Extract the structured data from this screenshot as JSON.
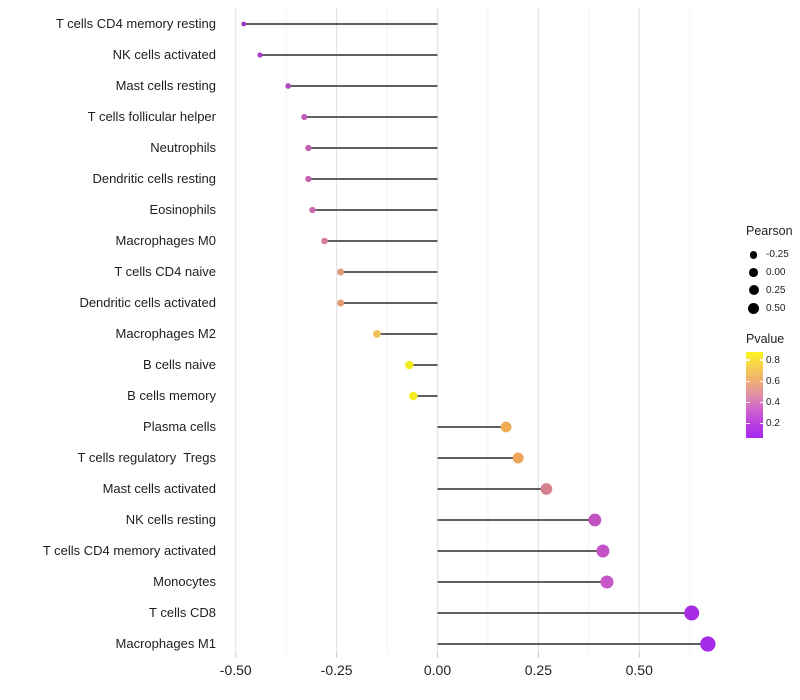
{
  "chart_data": {
    "type": "lollipop",
    "orientation": "horizontal",
    "title": "",
    "xlabel": "",
    "ylabel": "",
    "baseline": 0,
    "xlim": [
      -0.54,
      0.73
    ],
    "x_ticks": [
      -0.5,
      -0.25,
      0.0,
      0.25,
      0.5
    ],
    "x_tick_labels": [
      "-0.50",
      "-0.25",
      "0.00",
      "0.25",
      "0.50"
    ],
    "x_minor_ticks": [
      -0.375,
      -0.125,
      0.125,
      0.375,
      0.625
    ],
    "grid": "vertical major and minor gridlines, white background",
    "size_encodes": "Pearson",
    "color_encodes": "Pvalue",
    "categories": [
      "T cells CD4 memory resting",
      "NK cells activated",
      "Mast cells resting",
      "T cells follicular helper",
      "Neutrophils",
      "Dendritic cells resting",
      "Eosinophils",
      "Macrophages M0",
      "T cells CD4 naive",
      "Dendritic cells activated",
      "Macrophages M2",
      "B cells naive",
      "B cells memory",
      "Plasma cells",
      "T cells regulatory  Tregs",
      "Mast cells activated",
      "NK cells resting",
      "T cells CD4 memory activated",
      "Monocytes",
      "T cells CD8",
      "Macrophages M1"
    ],
    "series": [
      {
        "name": "Pearson correlation",
        "values": [
          -0.48,
          -0.44,
          -0.37,
          -0.33,
          -0.32,
          -0.32,
          -0.31,
          -0.28,
          -0.24,
          -0.24,
          -0.15,
          -0.07,
          -0.06,
          0.17,
          0.2,
          0.27,
          0.39,
          0.41,
          0.42,
          0.63,
          0.67
        ]
      }
    ],
    "point_colors": [
      "#9C31C6",
      "#A83CCA",
      "#B149BE",
      "#C25CB3",
      "#C45FB0",
      "#C662AE",
      "#C968AA",
      "#D67D99",
      "#E39A76",
      "#E49A73",
      "#EFC05C",
      "#F2EC25",
      "#F3EE21",
      "#EFAD55",
      "#EFA559",
      "#D9808F",
      "#C151C1",
      "#C353C6",
      "#C557C9",
      "#A72BE3",
      "#A42BE8"
    ]
  },
  "legends": {
    "pearson": {
      "title": "Pearson",
      "dot_color": "#000000",
      "entries": [
        {
          "label": "-0.25"
        },
        {
          "label": "0.00"
        },
        {
          "label": "0.25"
        },
        {
          "label": "0.50"
        }
      ]
    },
    "pvalue": {
      "title": "Pvalue",
      "tick_labels": [
        "0.8",
        "0.6",
        "0.4",
        "0.2"
      ],
      "gradient_bottom_to_top": [
        "#A527F2",
        "#BB3FDE",
        "#CF64CC",
        "#E18FA4",
        "#EFAF72",
        "#F6D051",
        "#FBF51F"
      ]
    }
  },
  "colors": {
    "background": "#FFFFFF",
    "stem": "#4A4A4A",
    "grid_major": "#E4E4E4",
    "grid_minor": "#F2F2F2",
    "axis_tick_mark": "#C9C9C9",
    "axis_text": "#1E1E1E"
  }
}
